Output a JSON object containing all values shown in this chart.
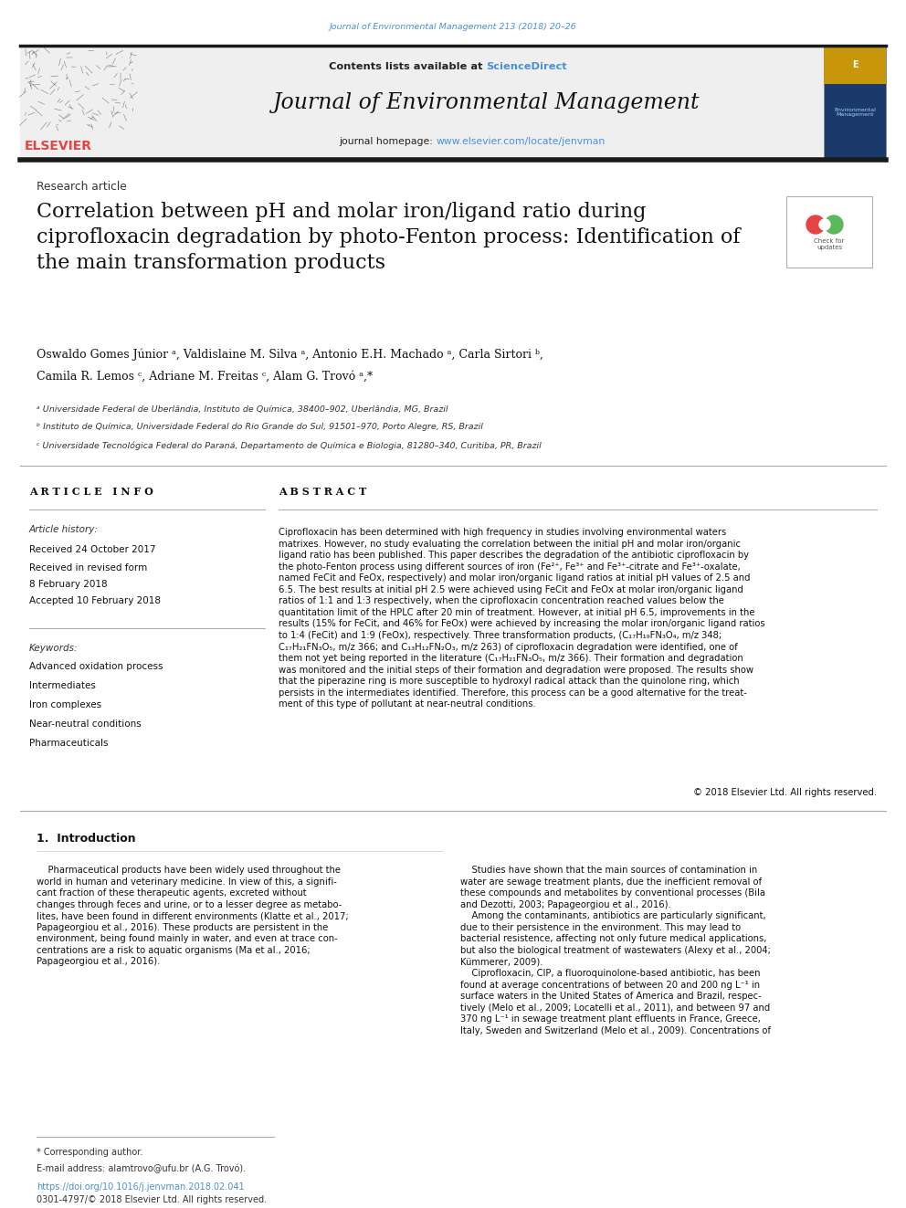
{
  "page_width": 9.92,
  "page_height": 13.23,
  "bg_color": "#ffffff",
  "header_journal_ref": "Journal of Environmental Management 213 (2018) 20–26",
  "header_journal_ref_color": "#4a90d9",
  "journal_name": "Journal of Environmental Management",
  "contents_text": "Contents lists available at ",
  "sciencedirect_text": "ScienceDirect",
  "sciencedirect_color": "#4a90d9",
  "homepage_text": "journal homepage: ",
  "homepage_url": "www.elsevier.com/locate/jenvman",
  "homepage_url_color": "#4a90d9",
  "article_type": "Research article",
  "paper_title": "Correlation between pH and molar iron/ligand ratio during\nciprofloxacin degradation by photo-Fenton process: Identification of\nthe main transformation products",
  "authors_line1": "Oswaldo Gomes Júnior ᵃ, Valdislaine M. Silva ᵃ, Antonio E.H. Machado ᵃ, Carla Sirtori ᵇ,",
  "authors_line2": "Camila R. Lemos ᶜ, Adriane M. Freitas ᶜ, Alam G. Trovó ᵃ,*",
  "affil_a": "ᵃ Universidade Federal de Uberlândia, Instituto de Química, 38400–902, Uberlândia, MG, Brazil",
  "affil_b": "ᵇ Instituto de Química, Universidade Federal do Rio Grande do Sul, 91501–970, Porto Alegre, RS, Brazil",
  "affil_c": "ᶜ Universidade Tecnológica Federal do Paraná, Departamento de Química e Biologia, 81280–340, Curitiba, PR, Brazil",
  "article_info_header": "A R T I C L E   I N F O",
  "abstract_header": "A B S T R A C T",
  "article_history_label": "Article history:",
  "received_1": "Received 24 October 2017",
  "received_revised": "Received in revised form",
  "revised_date": "8 February 2018",
  "accepted": "Accepted 10 February 2018",
  "keywords_label": "Keywords:",
  "keywords": [
    "Advanced oxidation process",
    "Intermediates",
    "Iron complexes",
    "Near-neutral conditions",
    "Pharmaceuticals"
  ],
  "abstract_text": "Ciprofloxacin has been determined with high frequency in studies involving environmental waters\nmatrixes. However, no study evaluating the correlation between the initial pH and molar iron/organic\nligand ratio has been published. This paper describes the degradation of the antibiotic ciprofloxacin by\nthe photo-Fenton process using different sources of iron (Fe²⁺, Fe³⁺ and Fe³⁺-citrate and Fe³⁺-oxalate,\nnamed FeCit and FeOx, respectively) and molar iron/organic ligand ratios at initial pH values of 2.5 and\n6.5. The best results at initial pH 2.5 were achieved using FeCit and FeOx at molar iron/organic ligand\nratios of 1:1 and 1:3 respectively, when the ciprofloxacin concentration reached values below the\nquantitation limit of the HPLC after 20 min of treatment. However, at initial pH 6.5, improvements in the\nresults (15% for FeCit, and 46% for FeOx) were achieved by increasing the molar iron/organic ligand ratios\nto 1:4 (FeCit) and 1:9 (FeOx), respectively. Three transformation products, (C₁₇H₁₉FN₃O₄, m/z 348;\nC₁₇H₂₁FN₃O₅, m/z 366; and C₁₃H₁₂FN₂O₃, m/z 263) of ciprofloxacin degradation were identified, one of\nthem not yet being reported in the literature (C₁₇H₂₁FN₃O₅, m/z 366). Their formation and degradation\nwas monitored and the initial steps of their formation and degradation were proposed. The results show\nthat the piperazine ring is more susceptible to hydroxyl radical attack than the quinolone ring, which\npersists in the intermediates identified. Therefore, this process can be a good alternative for the treat-\nment of this type of pollutant at near-neutral conditions.",
  "copyright_text": "© 2018 Elsevier Ltd. All rights reserved.",
  "intro_header": "1.  Introduction",
  "intro_col1": "    Pharmaceutical products have been widely used throughout the\nworld in human and veterinary medicine. In view of this, a signifi-\ncant fraction of these therapeutic agents, excreted without\nchanges through feces and urine, or to a lesser degree as metabo-\nlites, have been found in different environments (Klatte et al., 2017;\nPapageorgiou et al., 2016). These products are persistent in the\nenvironment, being found mainly in water, and even at trace con-\ncentrations are a risk to aquatic organisms (Ma et al., 2016;\nPapageorgiou et al., 2016).",
  "intro_col2": "    Studies have shown that the main sources of contamination in\nwater are sewage treatment plants, due the inefficient removal of\nthese compounds and metabolites by conventional processes (Bila\nand Dezotti, 2003; Papageorgiou et al., 2016).\n    Among the contaminants, antibiotics are particularly significant,\ndue to their persistence in the environment. This may lead to\nbacterial resistence, affecting not only future medical applications,\nbut also the biological treatment of wastewaters (Alexy et al., 2004;\nKümmerer, 2009).\n    Ciprofloxacin, CIP, a fluoroquinolone-based antibiotic, has been\nfound at average concentrations of between 20 and 200 ng L⁻¹ in\nsurface waters in the United States of America and Brazil, respec-\ntively (Melo et al., 2009; Locatelli et al., 2011), and between 97 and\n370 ng L⁻¹ in sewage treatment plant effluents in France, Greece,\nItaly, Sweden and Switzerland (Melo et al., 2009). Concentrations of",
  "corresponding_author_text": "* Corresponding author.",
  "email_text": "E-mail address: alamtrovo@ufu.br (A.G. Trovó).",
  "doi_text": "https://doi.org/10.1016/j.jenvman.2018.02.041",
  "issn_text": "0301-4797/© 2018 Elsevier Ltd. All rights reserved.",
  "header_bg_color": "#efefef",
  "thick_bar_color": "#1a1a1a",
  "thin_line_color": "#888888",
  "link_color": "#4a90d9"
}
